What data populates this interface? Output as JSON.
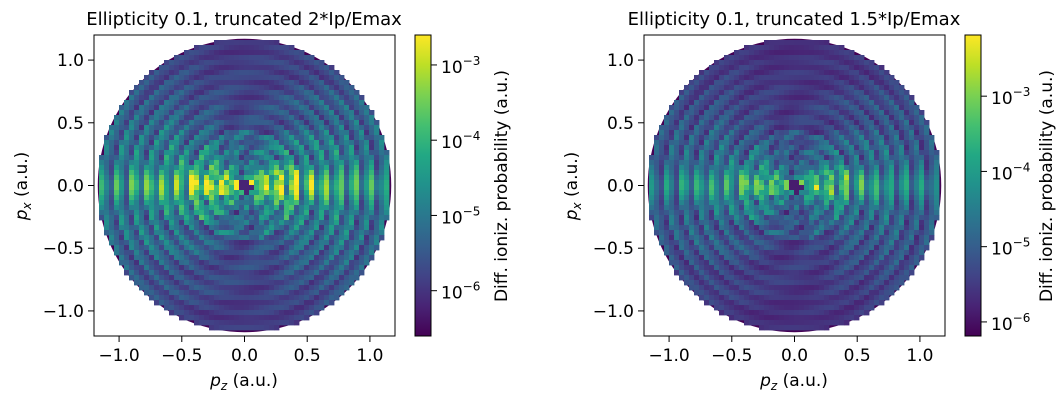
{
  "chart_data": [
    {
      "type": "heatmap",
      "subtype": "polar-disc",
      "title": "Ellipticity 0.1, truncated 2*Ip/Emax",
      "xlabel": "p_z (a.u.)",
      "ylabel": "p_x (a.u.)",
      "xlabel_parts": {
        "symbol": "p",
        "sub": "z",
        "unit": " (a.u.)"
      },
      "ylabel_parts": {
        "symbol": "p",
        "sub": "x",
        "unit": " (a.u.)"
      },
      "xlim": [
        -1.2,
        1.2
      ],
      "ylim": [
        -1.2,
        1.2
      ],
      "xticks": [
        -1.0,
        -0.5,
        0.0,
        0.5,
        1.0
      ],
      "xtick_labels": [
        "−1.0",
        "−0.5",
        "0.0",
        "0.5",
        "1.0"
      ],
      "yticks": [
        -1.0,
        -0.5,
        0.0,
        0.5,
        1.0
      ],
      "ytick_labels": [
        "−1.0",
        "−0.5",
        "0.0",
        "0.5",
        "1.0"
      ],
      "disc_radius": 1.17,
      "colormap": "viridis",
      "colorbar": {
        "label": "Diff. ioniz. probability (a.u.)",
        "scale": "log",
        "range": [
          2.5e-07,
          0.0025
        ],
        "ticks": [
          1e-06,
          1e-05,
          0.0001,
          0.001
        ],
        "tick_labels": [
          {
            "base": "10",
            "exp": "−6"
          },
          {
            "base": "10",
            "exp": "−5"
          },
          {
            "base": "10",
            "exp": "−4"
          },
          {
            "base": "10",
            "exp": "−3"
          }
        ]
      },
      "intensity_scale": 1.0
    },
    {
      "type": "heatmap",
      "subtype": "polar-disc",
      "title": "Ellipticity 0.1, truncated 1.5*Ip/Emax",
      "xlabel": "p_z (a.u.)",
      "ylabel": "p_x (a.u.)",
      "xlabel_parts": {
        "symbol": "p",
        "sub": "z",
        "unit": " (a.u.)"
      },
      "ylabel_parts": {
        "symbol": "p",
        "sub": "x",
        "unit": " (a.u.)"
      },
      "xlim": [
        -1.2,
        1.2
      ],
      "ylim": [
        -1.2,
        1.2
      ],
      "xticks": [
        -1.0,
        -0.5,
        0.0,
        0.5,
        1.0
      ],
      "xtick_labels": [
        "−1.0",
        "−0.5",
        "0.0",
        "0.5",
        "1.0"
      ],
      "yticks": [
        -1.0,
        -0.5,
        0.0,
        0.5,
        1.0
      ],
      "ytick_labels": [
        "−1.0",
        "−0.5",
        "0.0",
        "0.5",
        "1.0"
      ],
      "disc_radius": 1.17,
      "colormap": "viridis",
      "colorbar": {
        "label": "Diff. ioniz. probability (a.u.)",
        "scale": "log",
        "range": [
          6.5e-07,
          0.0065
        ],
        "ticks": [
          1e-06,
          1e-05,
          0.0001,
          0.001
        ],
        "tick_labels": [
          {
            "base": "10",
            "exp": "−6"
          },
          {
            "base": "10",
            "exp": "−5"
          },
          {
            "base": "10",
            "exp": "−4"
          },
          {
            "base": "10",
            "exp": "−3"
          }
        ]
      },
      "intensity_scale": 0.8
    }
  ]
}
